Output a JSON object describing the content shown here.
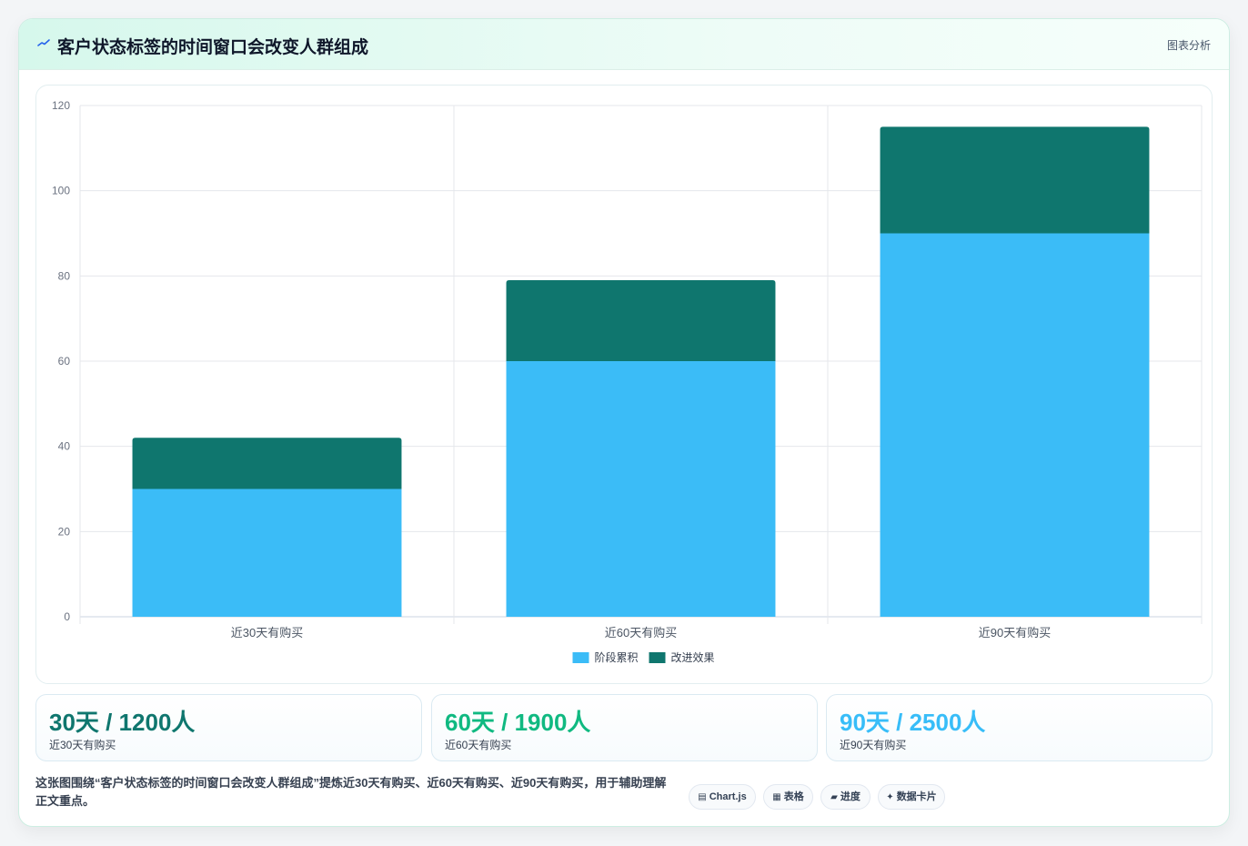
{
  "header": {
    "title": "客户状态标签的时间窗口会改变人群组成",
    "tag": "图表分析"
  },
  "chart_data": {
    "type": "bar",
    "stacked": true,
    "categories": [
      "近30天有购买",
      "近60天有购买",
      "近90天有购买"
    ],
    "series": [
      {
        "name": "阶段累积",
        "values": [
          30,
          60,
          90
        ],
        "color": "#3bbcf7"
      },
      {
        "name": "改进效果",
        "values": [
          12,
          19,
          25
        ],
        "color": "#0f766e"
      }
    ],
    "ylim": [
      0,
      120
    ],
    "yticks": [
      0,
      20,
      40,
      60,
      80,
      100,
      120
    ],
    "grid": true,
    "legend": "bottom"
  },
  "stats": [
    {
      "value": "30天 / 1200人",
      "label": "近30天有购买",
      "color": "#0f766e"
    },
    {
      "value": "60天 / 1900人",
      "label": "近60天有购买",
      "color": "#10b981"
    },
    {
      "value": "90天 / 2500人",
      "label": "近90天有购买",
      "color": "#38bdf8"
    }
  ],
  "footer": {
    "description": "这张图围绕“客户状态标签的时间窗口会改变人群组成”提炼近30天有购买、近60天有购买、近90天有购买，用于辅助理解正文重点。",
    "chips": [
      {
        "icon": "▤",
        "label": "Chart.js"
      },
      {
        "icon": "▦",
        "label": "表格"
      },
      {
        "icon": "▰",
        "label": "进度"
      },
      {
        "icon": "✦",
        "label": "数据卡片"
      }
    ]
  }
}
